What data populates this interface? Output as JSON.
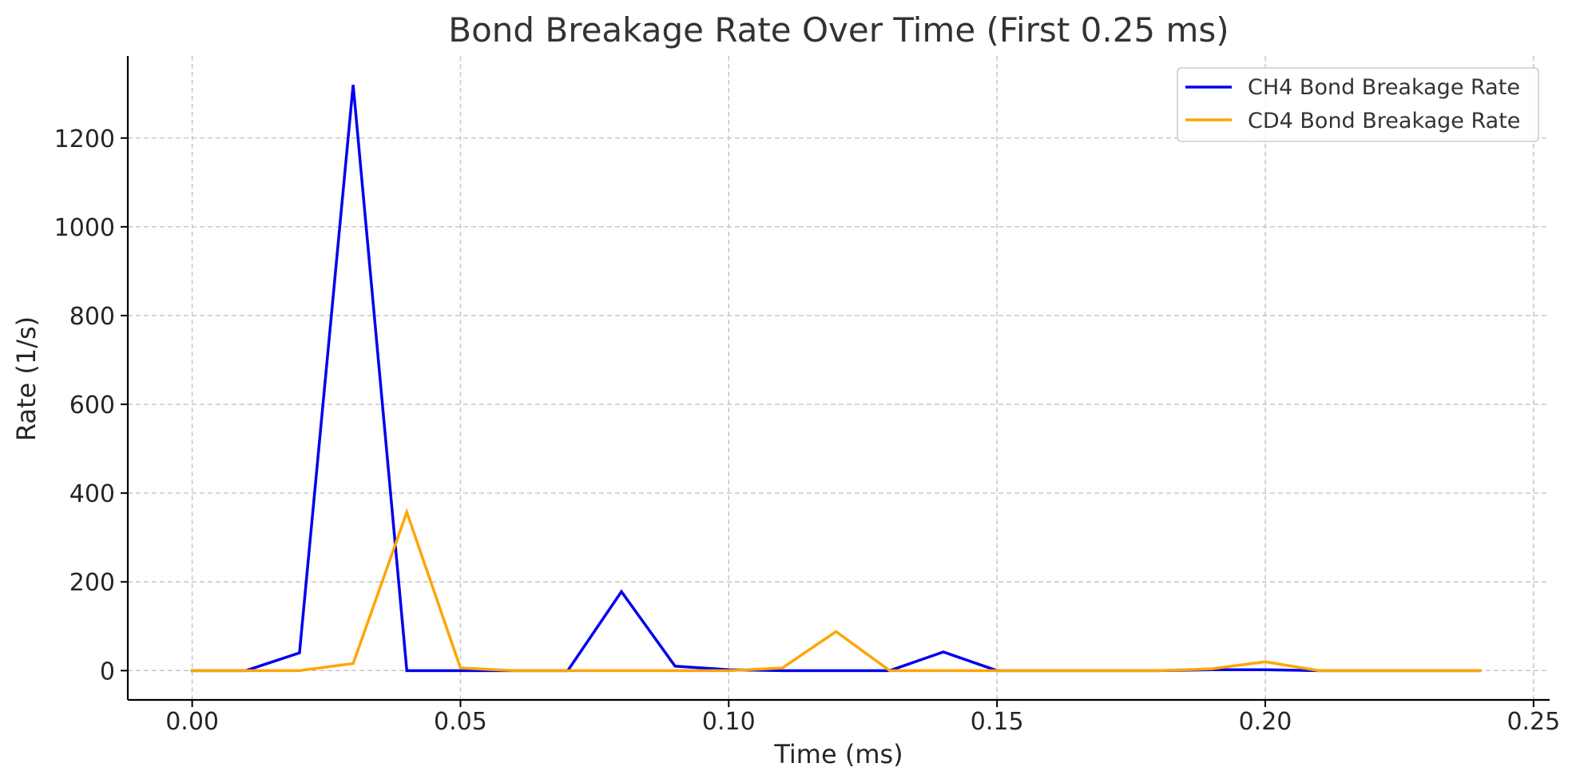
{
  "chart_data": {
    "type": "line",
    "title": "Bond Breakage Rate Over Time (First 0.25 ms)",
    "xlabel": "Time (ms)",
    "ylabel": "Rate (1/s)",
    "xlim": [
      -0.012,
      0.253
    ],
    "ylim": [
      -66,
      1385
    ],
    "x_ticks": [
      0.0,
      0.05,
      0.1,
      0.15,
      0.2,
      0.25
    ],
    "x_tick_labels": [
      "0.00",
      "0.05",
      "0.10",
      "0.15",
      "0.20",
      "0.25"
    ],
    "y_ticks": [
      0,
      200,
      400,
      600,
      800,
      1000,
      1200
    ],
    "y_tick_labels": [
      "0",
      "200",
      "400",
      "600",
      "800",
      "1000",
      "1200"
    ],
    "grid": true,
    "legend_position": "top-right",
    "x": [
      0.0,
      0.01,
      0.02,
      0.03,
      0.04,
      0.05,
      0.06,
      0.07,
      0.08,
      0.09,
      0.1,
      0.11,
      0.12,
      0.13,
      0.14,
      0.15,
      0.16,
      0.17,
      0.18,
      0.19,
      0.2,
      0.21,
      0.22,
      0.23,
      0.24
    ],
    "series": [
      {
        "name": "CH4 Bond Breakage Rate",
        "color": "#0000ee",
        "values": [
          0,
          0,
          40,
          1320,
          0,
          0,
          0,
          0,
          178,
          10,
          2,
          0,
          0,
          0,
          42,
          0,
          0,
          0,
          0,
          2,
          2,
          0,
          0,
          0,
          0
        ]
      },
      {
        "name": "CD4 Bond Breakage Rate",
        "color": "#ffa500",
        "values": [
          0,
          0,
          0,
          16,
          357,
          6,
          0,
          0,
          0,
          0,
          0,
          6,
          88,
          0,
          0,
          0,
          0,
          0,
          0,
          4,
          20,
          0,
          0,
          0,
          0
        ]
      }
    ]
  }
}
